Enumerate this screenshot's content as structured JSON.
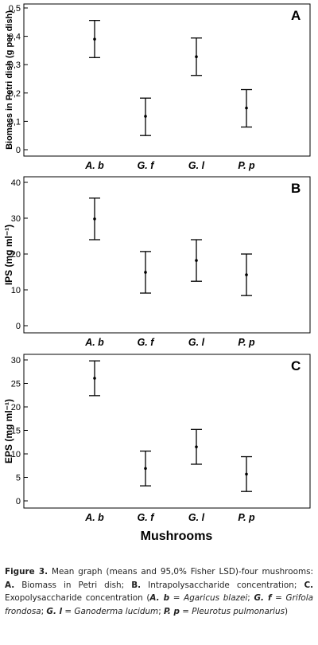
{
  "chart_data": [
    {
      "type": "scatter",
      "panel_letter": "A",
      "ylabel": "Biomass in Petri dish (g per dish)",
      "ylim": [
        0,
        0.5
      ],
      "yticks": [
        "0",
        "0,1",
        "0,2",
        "0,3",
        "0,4",
        "0,5"
      ],
      "categories": [
        "A. b",
        "G. f",
        "G. l",
        "P. p"
      ],
      "means": [
        0.39,
        0.118,
        0.328,
        0.147
      ],
      "lower": [
        0.325,
        0.05,
        0.262,
        0.08
      ],
      "upper": [
        0.456,
        0.182,
        0.394,
        0.212
      ]
    },
    {
      "type": "scatter",
      "panel_letter": "B",
      "ylabel": "IPS (mg ml⁻¹)",
      "ylim": [
        0,
        40
      ],
      "yticks": [
        "0",
        "10",
        "20",
        "30",
        "40"
      ],
      "categories": [
        "A. b",
        "G. f",
        "G. l",
        "P. p"
      ],
      "means": [
        29.8,
        14.9,
        18.2,
        14.2
      ],
      "lower": [
        24.0,
        9.1,
        12.4,
        8.4
      ],
      "upper": [
        35.6,
        20.7,
        24.0,
        20.0
      ]
    },
    {
      "type": "scatter",
      "panel_letter": "C",
      "ylabel": "EPS (mg ml⁻¹)",
      "xlabel": "Mushrooms",
      "ylim": [
        0,
        30
      ],
      "yticks": [
        "0",
        "5",
        "10",
        "15",
        "20",
        "25",
        "30"
      ],
      "categories": [
        "A. b",
        "G. f",
        "G. l",
        "P. p"
      ],
      "means": [
        26.1,
        6.9,
        11.5,
        5.7
      ],
      "lower": [
        22.4,
        3.2,
        7.8,
        2.0
      ],
      "upper": [
        29.8,
        10.6,
        15.2,
        9.4
      ]
    }
  ],
  "caption": {
    "figure_label": "Figure 3.",
    "p1": " Mean graph (means and 95,0% Fisher LSD)-four mushrooms: ",
    "a": "A.",
    "p2": " Biomass in Petri dish; ",
    "b": "B.",
    "p3": " Intrapolysaccharide concentration; ",
    "c": "C.",
    "p4": " Exopolysaccharide concentration (",
    "ab": "A. b",
    "p5": " = ",
    "ab_name": "Agaricus blazei",
    "p6": "; ",
    "gf": "G. f",
    "p7": " = ",
    "gf_name": "Grifola frondosa",
    "p8": "; ",
    "gl": "G. l",
    "p9": " = ",
    "gl_name": "Ganoderma lucidum",
    "p10": "; ",
    "pp": "P. p",
    "p11": " = ",
    "pp_name": "Pleurotus pulmonarius",
    "p12": ")"
  }
}
